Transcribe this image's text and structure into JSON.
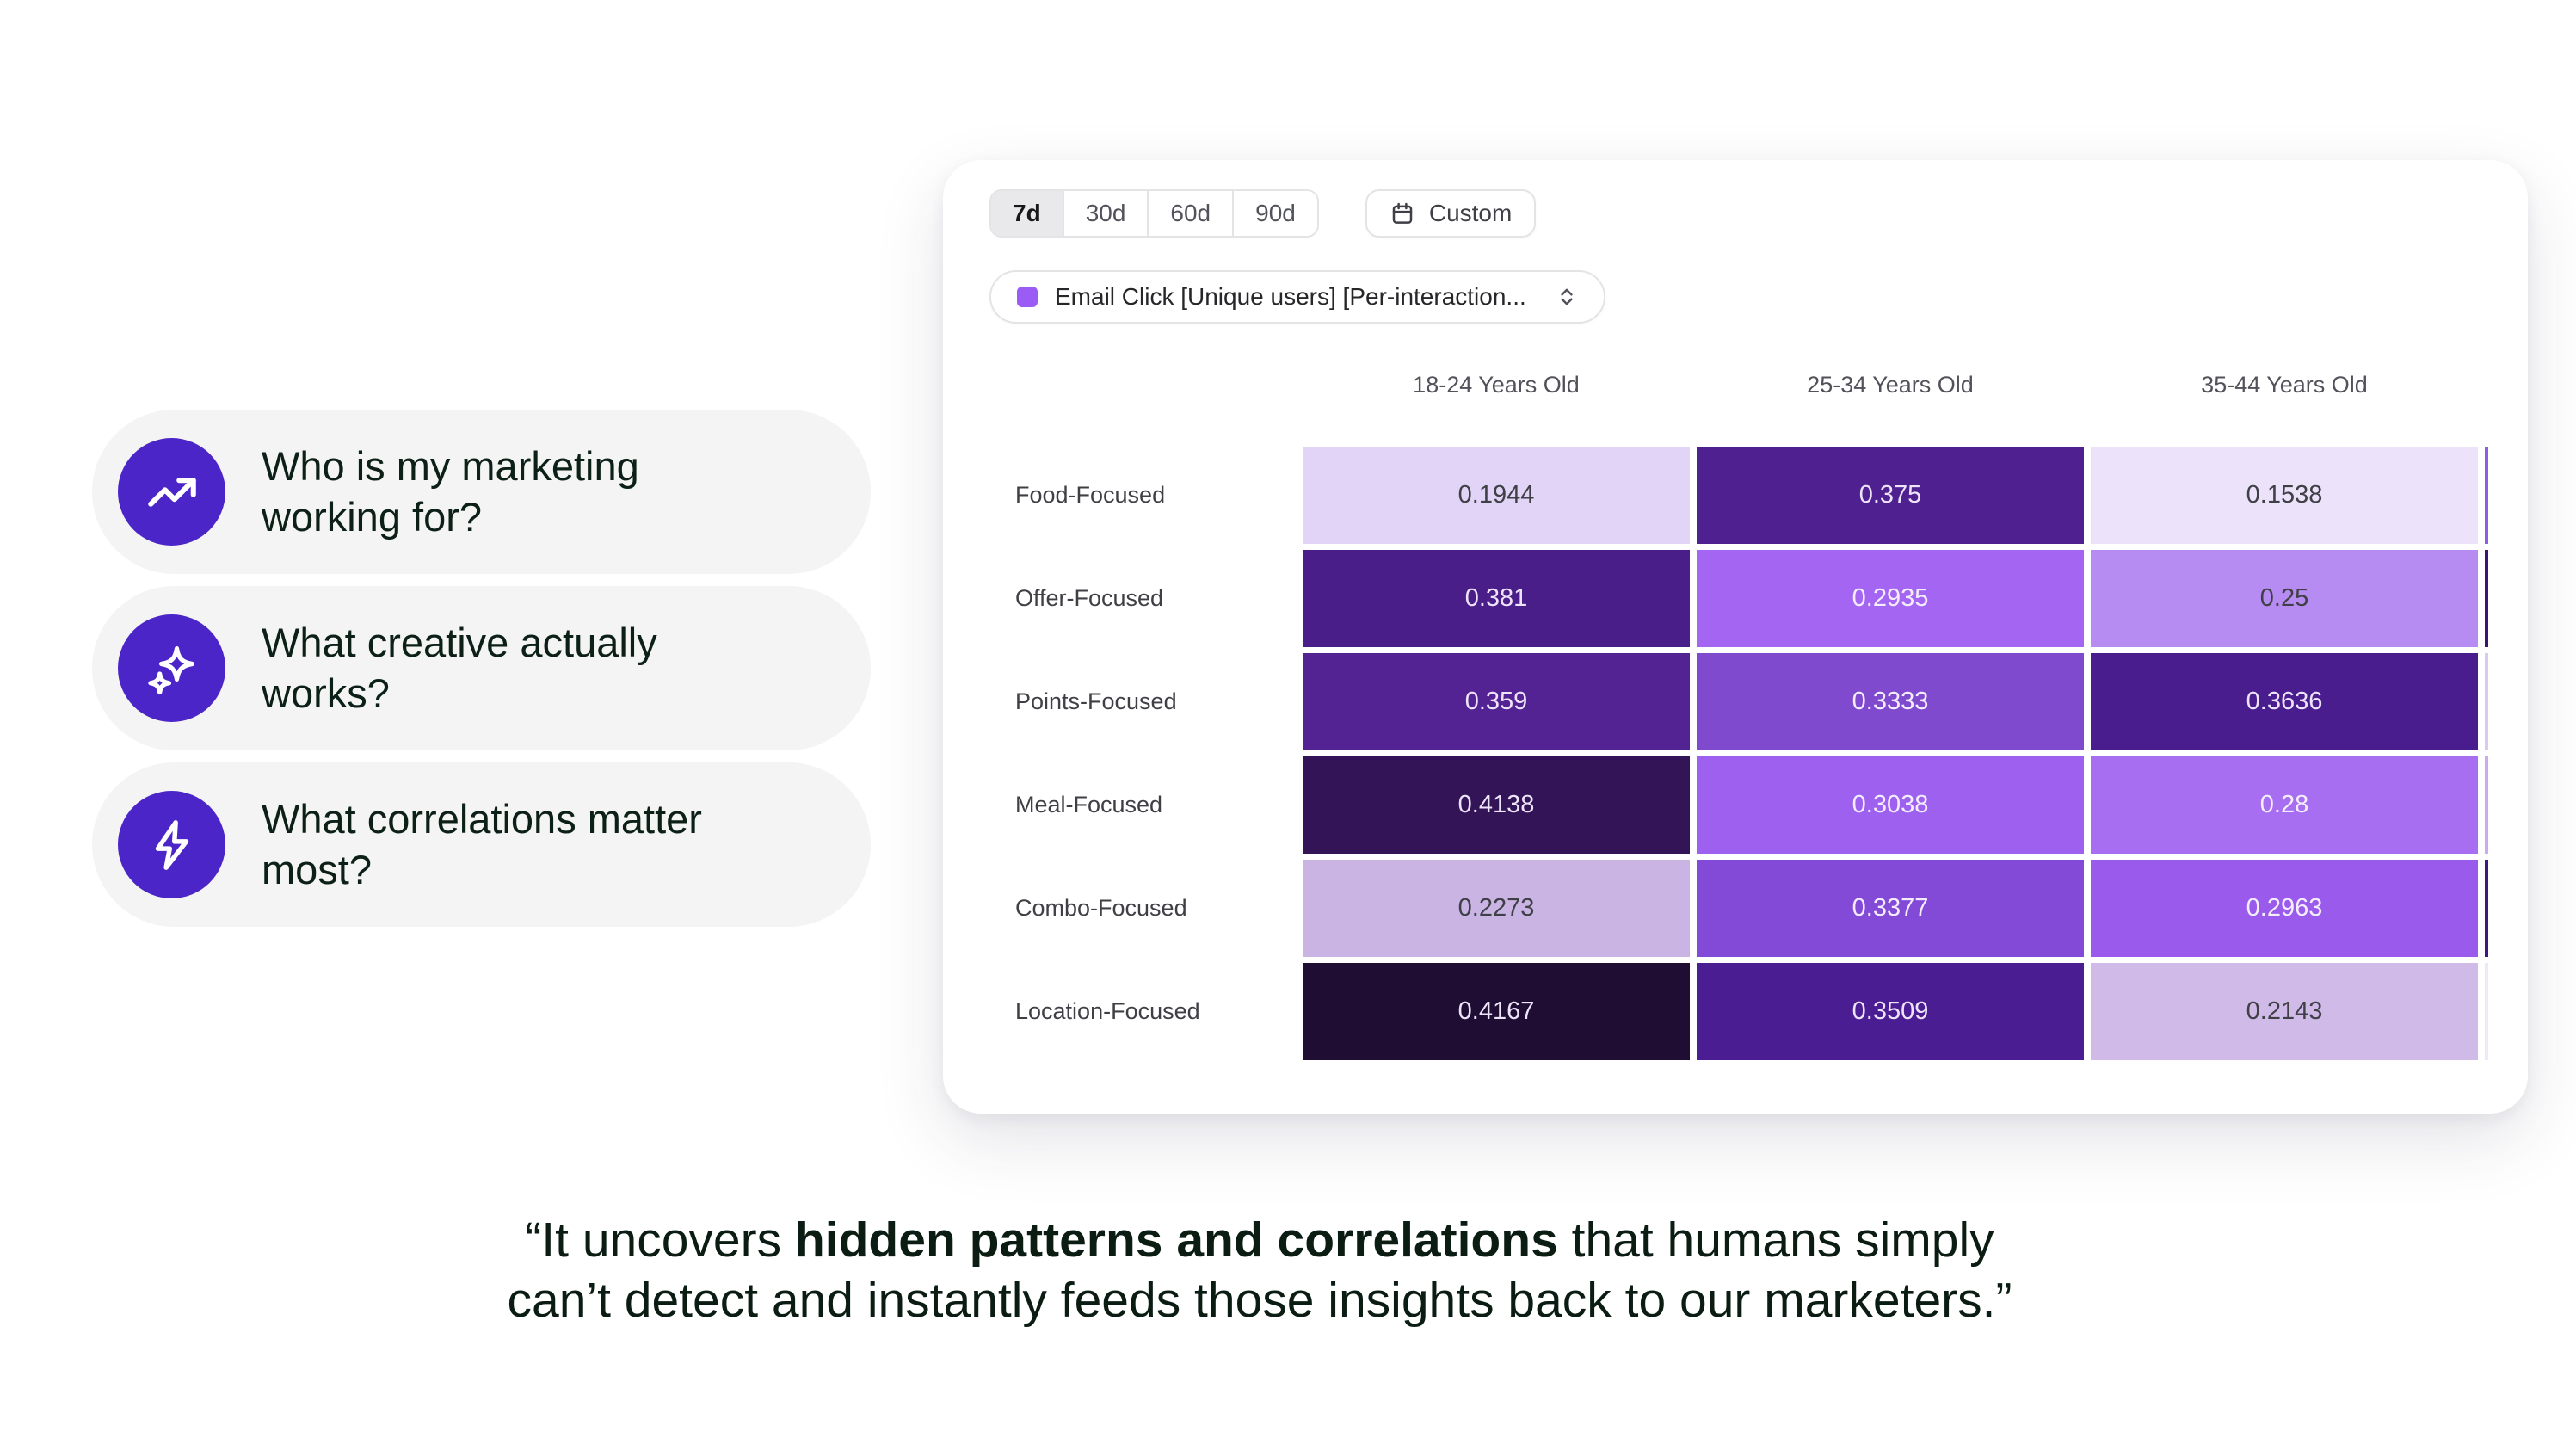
{
  "questions": [
    {
      "icon": "trending-up-icon",
      "label": "Who is my marketing working for?"
    },
    {
      "icon": "sparkles-icon",
      "label": "What creative actually works?"
    },
    {
      "icon": "lightning-icon",
      "label": "What correlations matter most?"
    }
  ],
  "card": {
    "time_ranges": [
      "7d",
      "30d",
      "60d",
      "90d"
    ],
    "selected_range": "7d",
    "custom_label": "Custom",
    "metric_dropdown": {
      "label": "Email Click [Unique users] [Per-interaction...",
      "swatch_color": "#9b5cf6"
    }
  },
  "chart_data": {
    "type": "heatmap",
    "title": "",
    "columns": [
      "18-24 Years Old",
      "25-34 Years Old",
      "35-44 Years Old"
    ],
    "rows": [
      "Food-Focused",
      "Offer-Focused",
      "Points-Focused",
      "Meal-Focused",
      "Combo-Focused",
      "Location-Focused"
    ],
    "values": [
      [
        "0.1944",
        "0.375",
        "0.1538"
      ],
      [
        "0.381",
        "0.2935",
        "0.25"
      ],
      [
        "0.359",
        "0.3333",
        "0.3636"
      ],
      [
        "0.4138",
        "0.3038",
        "0.28"
      ],
      [
        "0.2273",
        "0.3377",
        "0.2963"
      ],
      [
        "0.4167",
        "0.3509",
        "0.2143"
      ]
    ],
    "cell_colors": [
      [
        "#e2d4f6",
        "#4e2090",
        "#ece2fa"
      ],
      [
        "#4a1e88",
        "#a466f2",
        "#b78cf2"
      ],
      [
        "#532394",
        "#7f4ace",
        "#4a1d8f"
      ],
      [
        "#321457",
        "#9e61ef",
        "#a76ef1"
      ],
      [
        "#c9b4e4",
        "#8349d7",
        "#9a5aec"
      ],
      [
        "#200d34",
        "#4b1d93",
        "#cfbae8"
      ]
    ],
    "cell_text_colors": [
      [
        "#3f3f46",
        "#ede4f9",
        "#3f3f46"
      ],
      [
        "#ede4f9",
        "#f4eefc",
        "#3f3f46"
      ],
      [
        "#ede4f9",
        "#f4eefc",
        "#ede4f9"
      ],
      [
        "#ede4f9",
        "#f4eefc",
        "#f4eefc"
      ],
      [
        "#3f3f46",
        "#f4eefc",
        "#f4eefc"
      ],
      [
        "#ede4f9",
        "#ede4f9",
        "#3f3f46"
      ]
    ],
    "overflow_column_colors": [
      "#8f5ce6",
      "#3b1375",
      "#dcc9f2",
      "#cdaaf0",
      "#41177e",
      "#f0e8fa"
    ],
    "legend_position": "none",
    "grid": false
  },
  "quote": {
    "line1_prefix": "“It uncovers ",
    "line1_bold": "hidden patterns and correlations",
    "line1_suffix": " that humans simply",
    "line2": "can’t detect and instantly feeds those insights back to our marketers.”"
  },
  "colors": {
    "accent_purple": "#4b25c7",
    "pill_background": "#f3f4f3",
    "text_dark": "#0c2017"
  }
}
